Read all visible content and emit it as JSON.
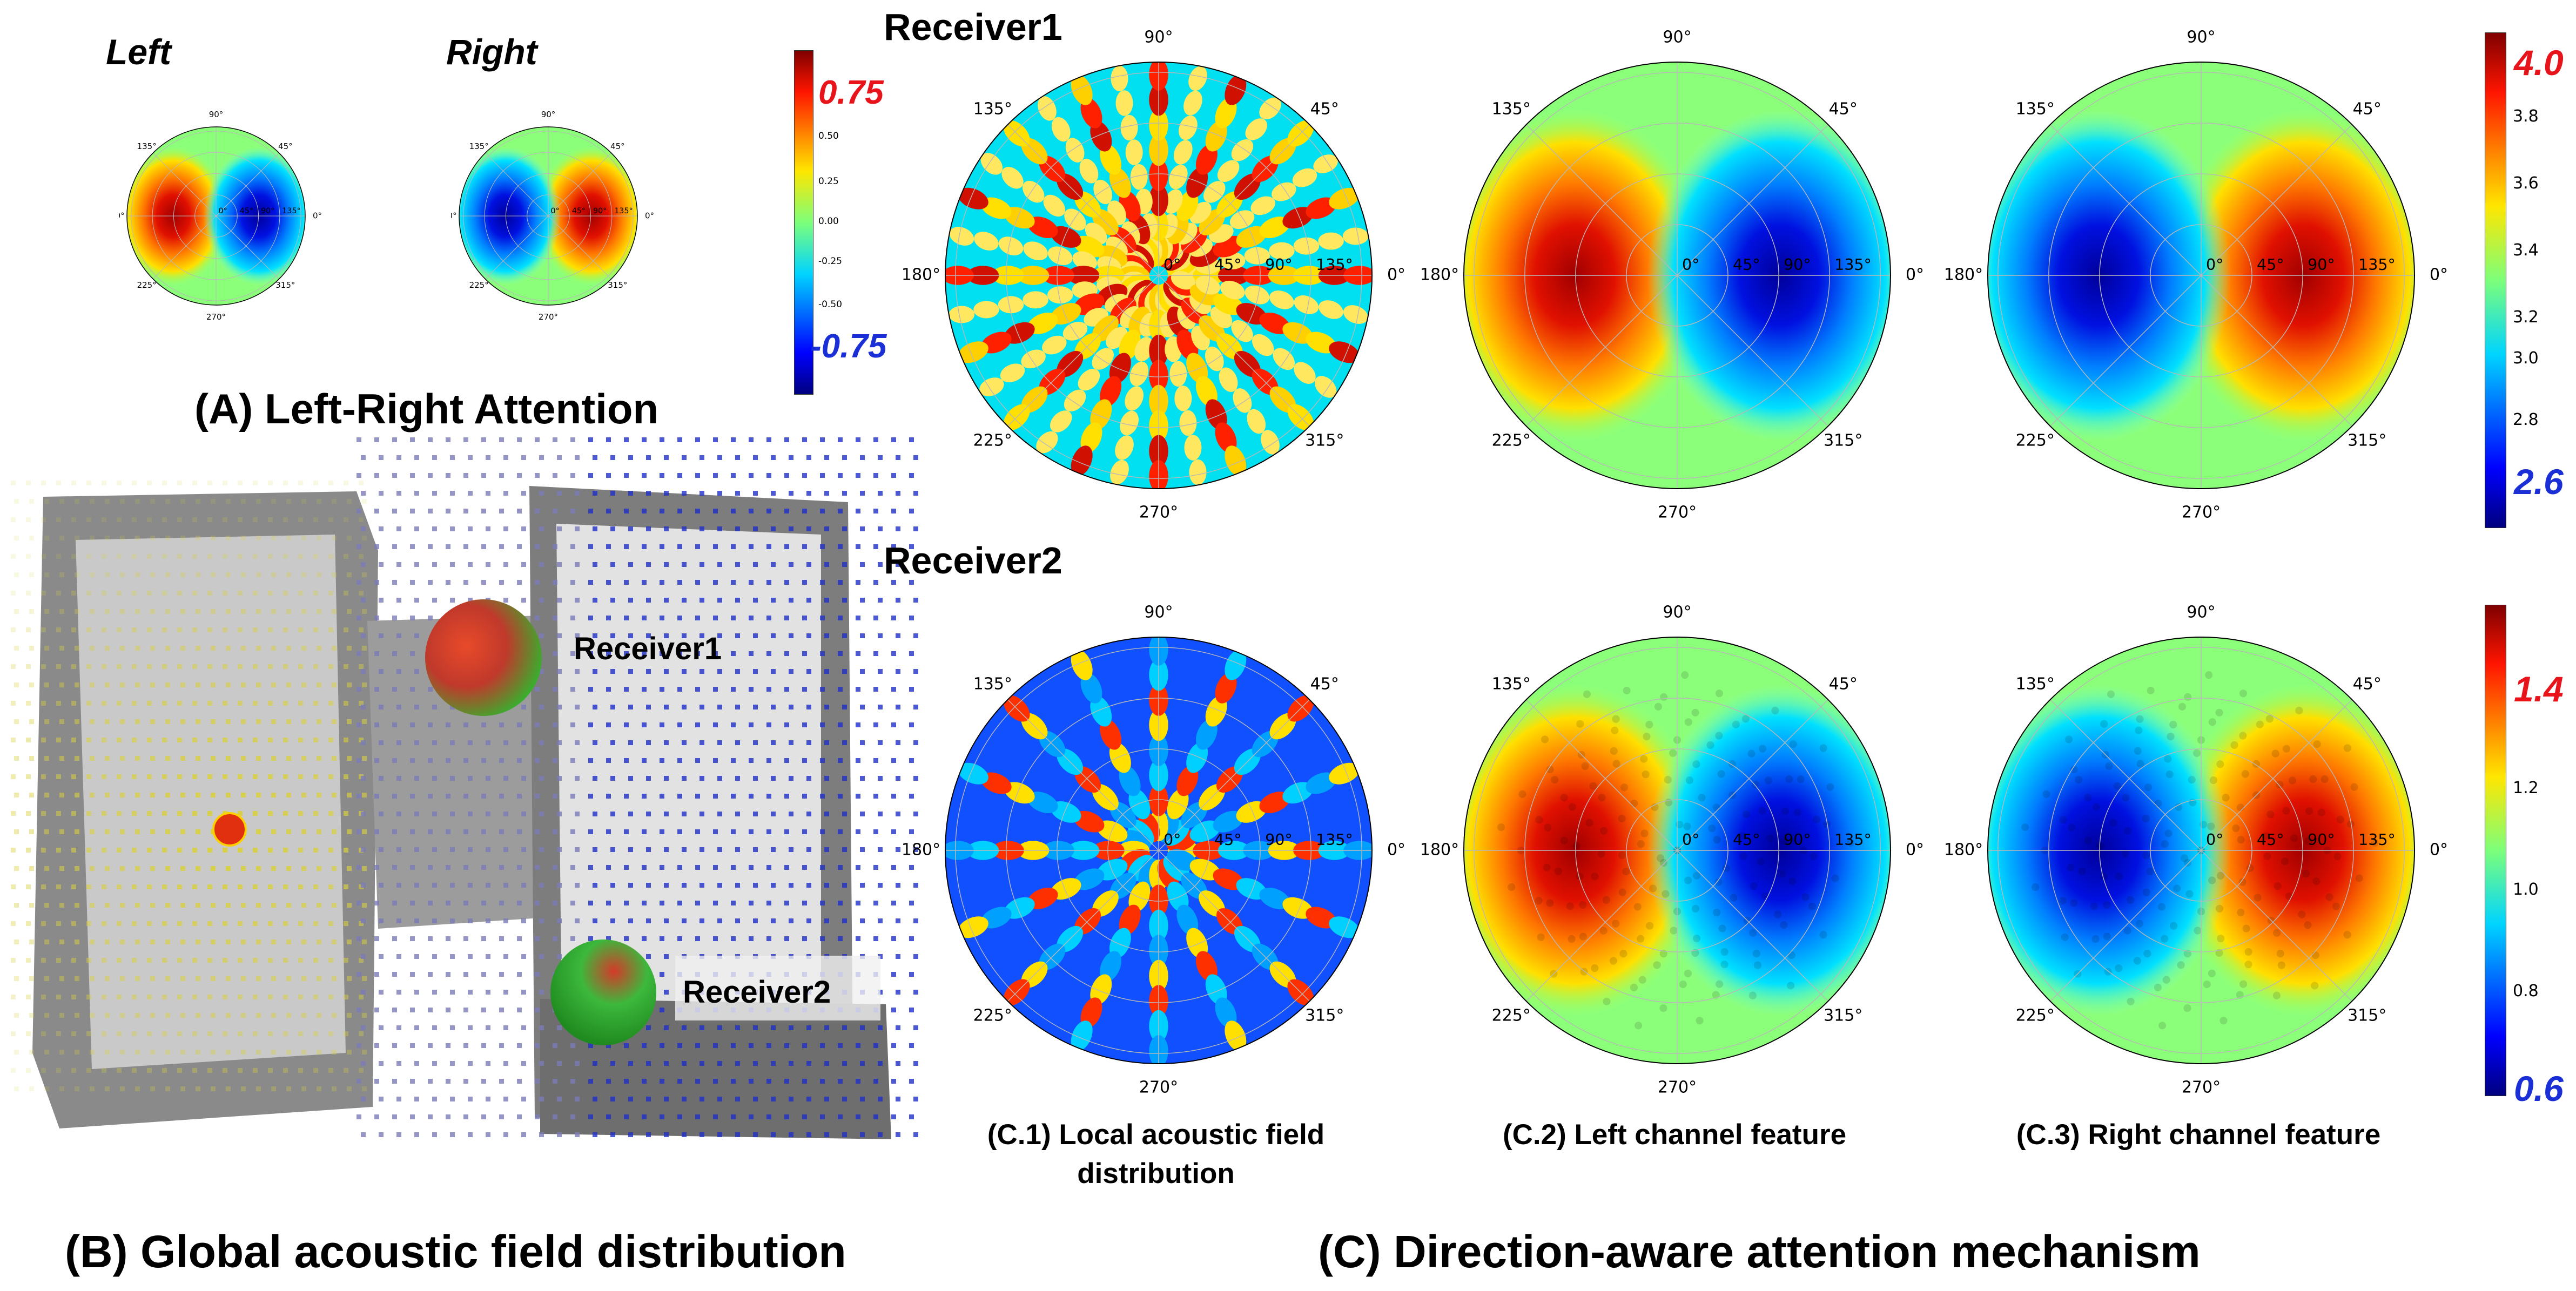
{
  "panelA": {
    "left_label": "Left",
    "right_label": "Right",
    "caption": "(A) Left-Right Attention",
    "angle_labels": [
      "90°",
      "45°",
      "135°",
      "180°",
      "0°",
      "225°",
      "270°",
      "315°"
    ],
    "radial_labels": [
      "0°",
      "45°",
      "90°",
      "135°"
    ],
    "colorbar_ticks": [
      "0.50",
      "0.25",
      "0.00",
      "-0.25",
      "-0.50"
    ],
    "colorbar_max": "0.75",
    "colorbar_min": "-0.75"
  },
  "panelB": {
    "receiver1": "Receiver1",
    "receiver2": "Receiver2",
    "caption": "(B) Global acoustic field distribution"
  },
  "panelC": {
    "row1_title": "Receiver1",
    "row2_title": "Receiver2",
    "angle_labels": [
      "90°",
      "45°",
      "135°",
      "180°",
      "0°",
      "225°",
      "270°",
      "315°"
    ],
    "radial_labels": [
      "0°",
      "45°",
      "90°",
      "135°"
    ],
    "c1_caption_line1": "(C.1) Local acoustic field",
    "c1_caption_line2": "distribution",
    "c2_caption": "(C.2) Left channel feature",
    "c3_caption": "(C.3) Right channel feature",
    "colorbar1_ticks": [
      "3.8",
      "3.6",
      "3.4",
      "3.2",
      "3.0",
      "2.8"
    ],
    "colorbar1_max": "4.0",
    "colorbar1_min": "2.6",
    "colorbar2_ticks": [
      "1.2",
      "1.0",
      "0.8"
    ],
    "colorbar2_max": "1.4",
    "colorbar2_min": "0.6",
    "caption": "(C) Direction-aware attention mechanism"
  },
  "colors": {
    "highlight_max": "#e8141c",
    "highlight_min": "#1a2fd6"
  }
}
